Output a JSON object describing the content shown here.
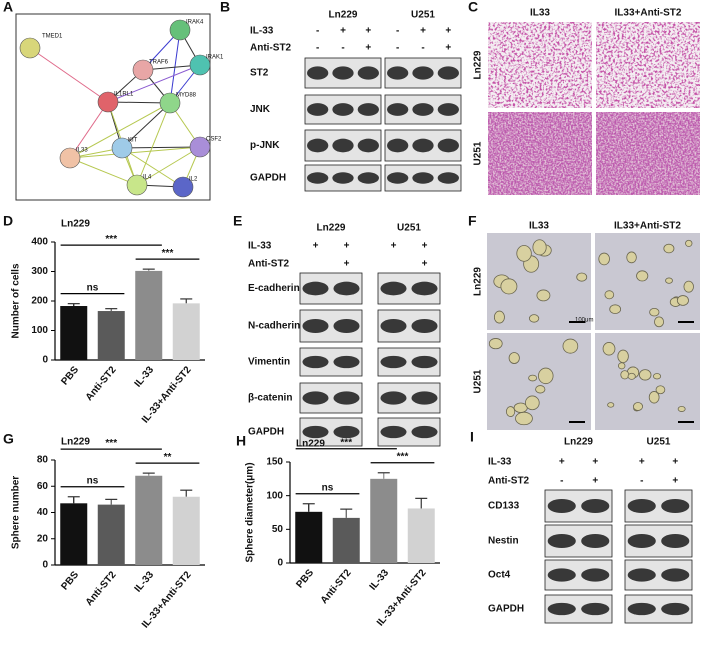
{
  "panels": {
    "A": {
      "letter": "A",
      "nodes": [
        "TMED1",
        "IRAK4",
        "TRAF6",
        "IRAK1",
        "IL1RL1",
        "MYD88",
        "KIT",
        "CSF2",
        "IL33",
        "IL4",
        "IL2"
      ]
    },
    "B": {
      "letter": "B",
      "groups": [
        "Ln229",
        "U251"
      ],
      "conditions": [
        {
          "label": "IL-33",
          "signs": [
            "-",
            "+",
            "+",
            "-",
            "+",
            "+"
          ]
        },
        {
          "label": "Anti-ST2",
          "signs": [
            "-",
            "-",
            "+",
            "-",
            "-",
            "+"
          ]
        }
      ],
      "blots": [
        "ST2",
        "JNK",
        "p-JNK",
        "GAPDH"
      ]
    },
    "C": {
      "letter": "C",
      "columns": [
        "IL33",
        "IL33+Anti-ST2"
      ],
      "rows": [
        "Ln229",
        "U251"
      ]
    },
    "E": {
      "letter": "E",
      "groups": [
        "Ln229",
        "U251"
      ],
      "conditions": [
        {
          "label": "IL-33",
          "signs": [
            "+",
            "+",
            "+",
            "+"
          ]
        },
        {
          "label": "Anti-ST2",
          "signs": [
            null,
            "+",
            null,
            "+"
          ]
        }
      ],
      "blots": [
        "E-cadherin",
        "N-cadherin",
        "Vimentin",
        "β-catenin",
        "GAPDH"
      ]
    },
    "F": {
      "letter": "F",
      "columns": [
        "IL33",
        "IL33+Anti-ST2"
      ],
      "rows": [
        "Ln229",
        "U251"
      ],
      "scale_label": "100μm"
    },
    "I": {
      "letter": "I",
      "groups": [
        "Ln229",
        "U251"
      ],
      "conditions": [
        {
          "label": "IL-33",
          "signs": [
            "+",
            "+",
            "+",
            "+"
          ]
        },
        {
          "label": "Anti-ST2",
          "signs": [
            "-",
            "+",
            "-",
            "+"
          ]
        }
      ],
      "blots": [
        "CD133",
        "Nestin",
        "Oct4",
        "GAPDH"
      ]
    }
  },
  "chart_data": [
    {
      "type": "bar",
      "letter": "D",
      "title": "Ln229",
      "y_label": "Number of cells",
      "categories": [
        "PBS",
        "Anti-ST2",
        "IL-33",
        "IL-33+Anti-ST2"
      ],
      "values": [
        183,
        166,
        302,
        192
      ],
      "errors": [
        8,
        8,
        6,
        15
      ],
      "colors": [
        "#111111",
        "#5a5a5a",
        "#8c8c8c",
        "#d2d2d2"
      ],
      "ylim": [
        0,
        400
      ],
      "yticks": [
        0,
        100,
        200,
        300,
        400
      ],
      "significance": [
        {
          "label": "***",
          "from": 0,
          "to": 2
        },
        {
          "label": "***",
          "from": 2,
          "to": 3
        },
        {
          "label": "ns",
          "from": 0,
          "to": 1
        }
      ]
    },
    {
      "type": "bar",
      "letter": "G",
      "title": "Ln229",
      "y_label": "Sphere number",
      "categories": [
        "PBS",
        "Anti-ST2",
        "IL-33",
        "IL-33+Anti-ST2"
      ],
      "values": [
        47,
        46,
        68,
        52
      ],
      "errors": [
        5,
        4,
        2,
        5
      ],
      "colors": [
        "#111111",
        "#5a5a5a",
        "#8c8c8c",
        "#d2d2d2"
      ],
      "ylim": [
        0,
        80
      ],
      "yticks": [
        0,
        20,
        40,
        60,
        80
      ],
      "significance": [
        {
          "label": "***",
          "from": 0,
          "to": 2
        },
        {
          "label": "**",
          "from": 2,
          "to": 3
        },
        {
          "label": "ns",
          "from": 0,
          "to": 1
        }
      ]
    },
    {
      "type": "bar",
      "letter": "H",
      "title": "Ln229",
      "y_label": "Sphere diameter(μm)",
      "categories": [
        "PBS",
        "Anti-ST2",
        "IL-33",
        "IL-33+Anti-ST2"
      ],
      "values": [
        76,
        67,
        125,
        81
      ],
      "errors": [
        12,
        13,
        9,
        15
      ],
      "colors": [
        "#111111",
        "#5a5a5a",
        "#8c8c8c",
        "#d2d2d2"
      ],
      "ylim": [
        0,
        150
      ],
      "yticks": [
        0,
        50,
        100,
        150
      ],
      "significance": [
        {
          "label": "***",
          "from": 0,
          "to": 2
        },
        {
          "label": "***",
          "from": 2,
          "to": 3
        },
        {
          "label": "ns",
          "from": 0,
          "to": 1
        }
      ]
    }
  ]
}
